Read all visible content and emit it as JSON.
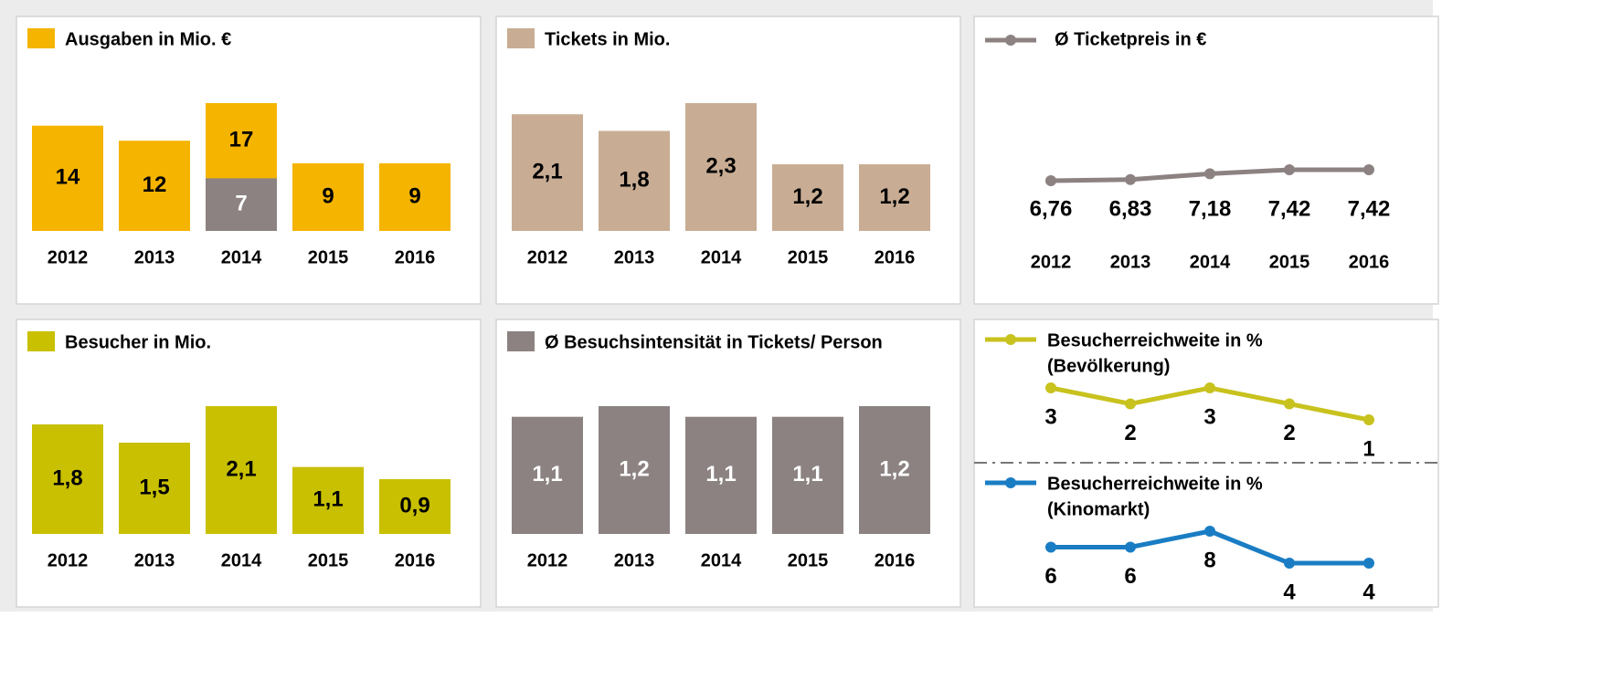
{
  "chart_data": [
    {
      "type": "bar",
      "title": "Ausgaben in Mio. €",
      "color": "#f5b400",
      "categories": [
        "2012",
        "2013",
        "2014",
        "2015",
        "2016"
      ],
      "values": [
        14,
        12,
        17,
        9,
        9
      ],
      "inset_values": [
        null,
        null,
        7,
        null,
        null
      ],
      "inset_color": "#8c8282"
    },
    {
      "type": "bar",
      "title": "Tickets in Mio.",
      "color": "#c8ad94",
      "categories": [
        "2012",
        "2013",
        "2014",
        "2015",
        "2016"
      ],
      "values": [
        2.1,
        1.8,
        2.3,
        1.2,
        1.2
      ],
      "value_labels": [
        "2,1",
        "1,8",
        "2,3",
        "1,2",
        "1,2"
      ]
    },
    {
      "type": "line",
      "title": "Ø Ticketpreis in €",
      "color": "#8c8282",
      "categories": [
        "2012",
        "2013",
        "2014",
        "2015",
        "2016"
      ],
      "values": [
        6.76,
        6.83,
        7.18,
        7.42,
        7.42
      ],
      "value_labels": [
        "6,76",
        "6,83",
        "7,18",
        "7,42",
        "7,42"
      ]
    },
    {
      "type": "bar",
      "title": "Besucher in Mio.",
      "color": "#c8c000",
      "categories": [
        "2012",
        "2013",
        "2014",
        "2015",
        "2016"
      ],
      "values": [
        1.8,
        1.5,
        2.1,
        1.1,
        0.9
      ],
      "value_labels": [
        "1,8",
        "1,5",
        "2,1",
        "1,1",
        "0,9"
      ]
    },
    {
      "type": "bar",
      "title": "Ø Besuchsintensität in Tickets/ Person",
      "color": "#8c8282",
      "label_color": "#ffffff",
      "categories": [
        "2012",
        "2013",
        "2014",
        "2015",
        "2016"
      ],
      "values": [
        1.1,
        1.2,
        1.1,
        1.1,
        1.2
      ],
      "value_labels": [
        "1,1",
        "1,2",
        "1,1",
        "1,1",
        "1,2"
      ]
    },
    {
      "type": "line",
      "categories": [
        null,
        null,
        null,
        null,
        null
      ],
      "series": [
        {
          "name": "Besucherreichweite in %",
          "subname": "(Bevölkerung)",
          "color": "#c8c21e",
          "values": [
            3,
            2,
            3,
            2,
            1
          ]
        },
        {
          "name": "Besucherreichweite in %",
          "subname": "(Kinomarkt)",
          "color": "#1a7dc4",
          "values": [
            6,
            6,
            8,
            4,
            4
          ]
        }
      ]
    }
  ]
}
